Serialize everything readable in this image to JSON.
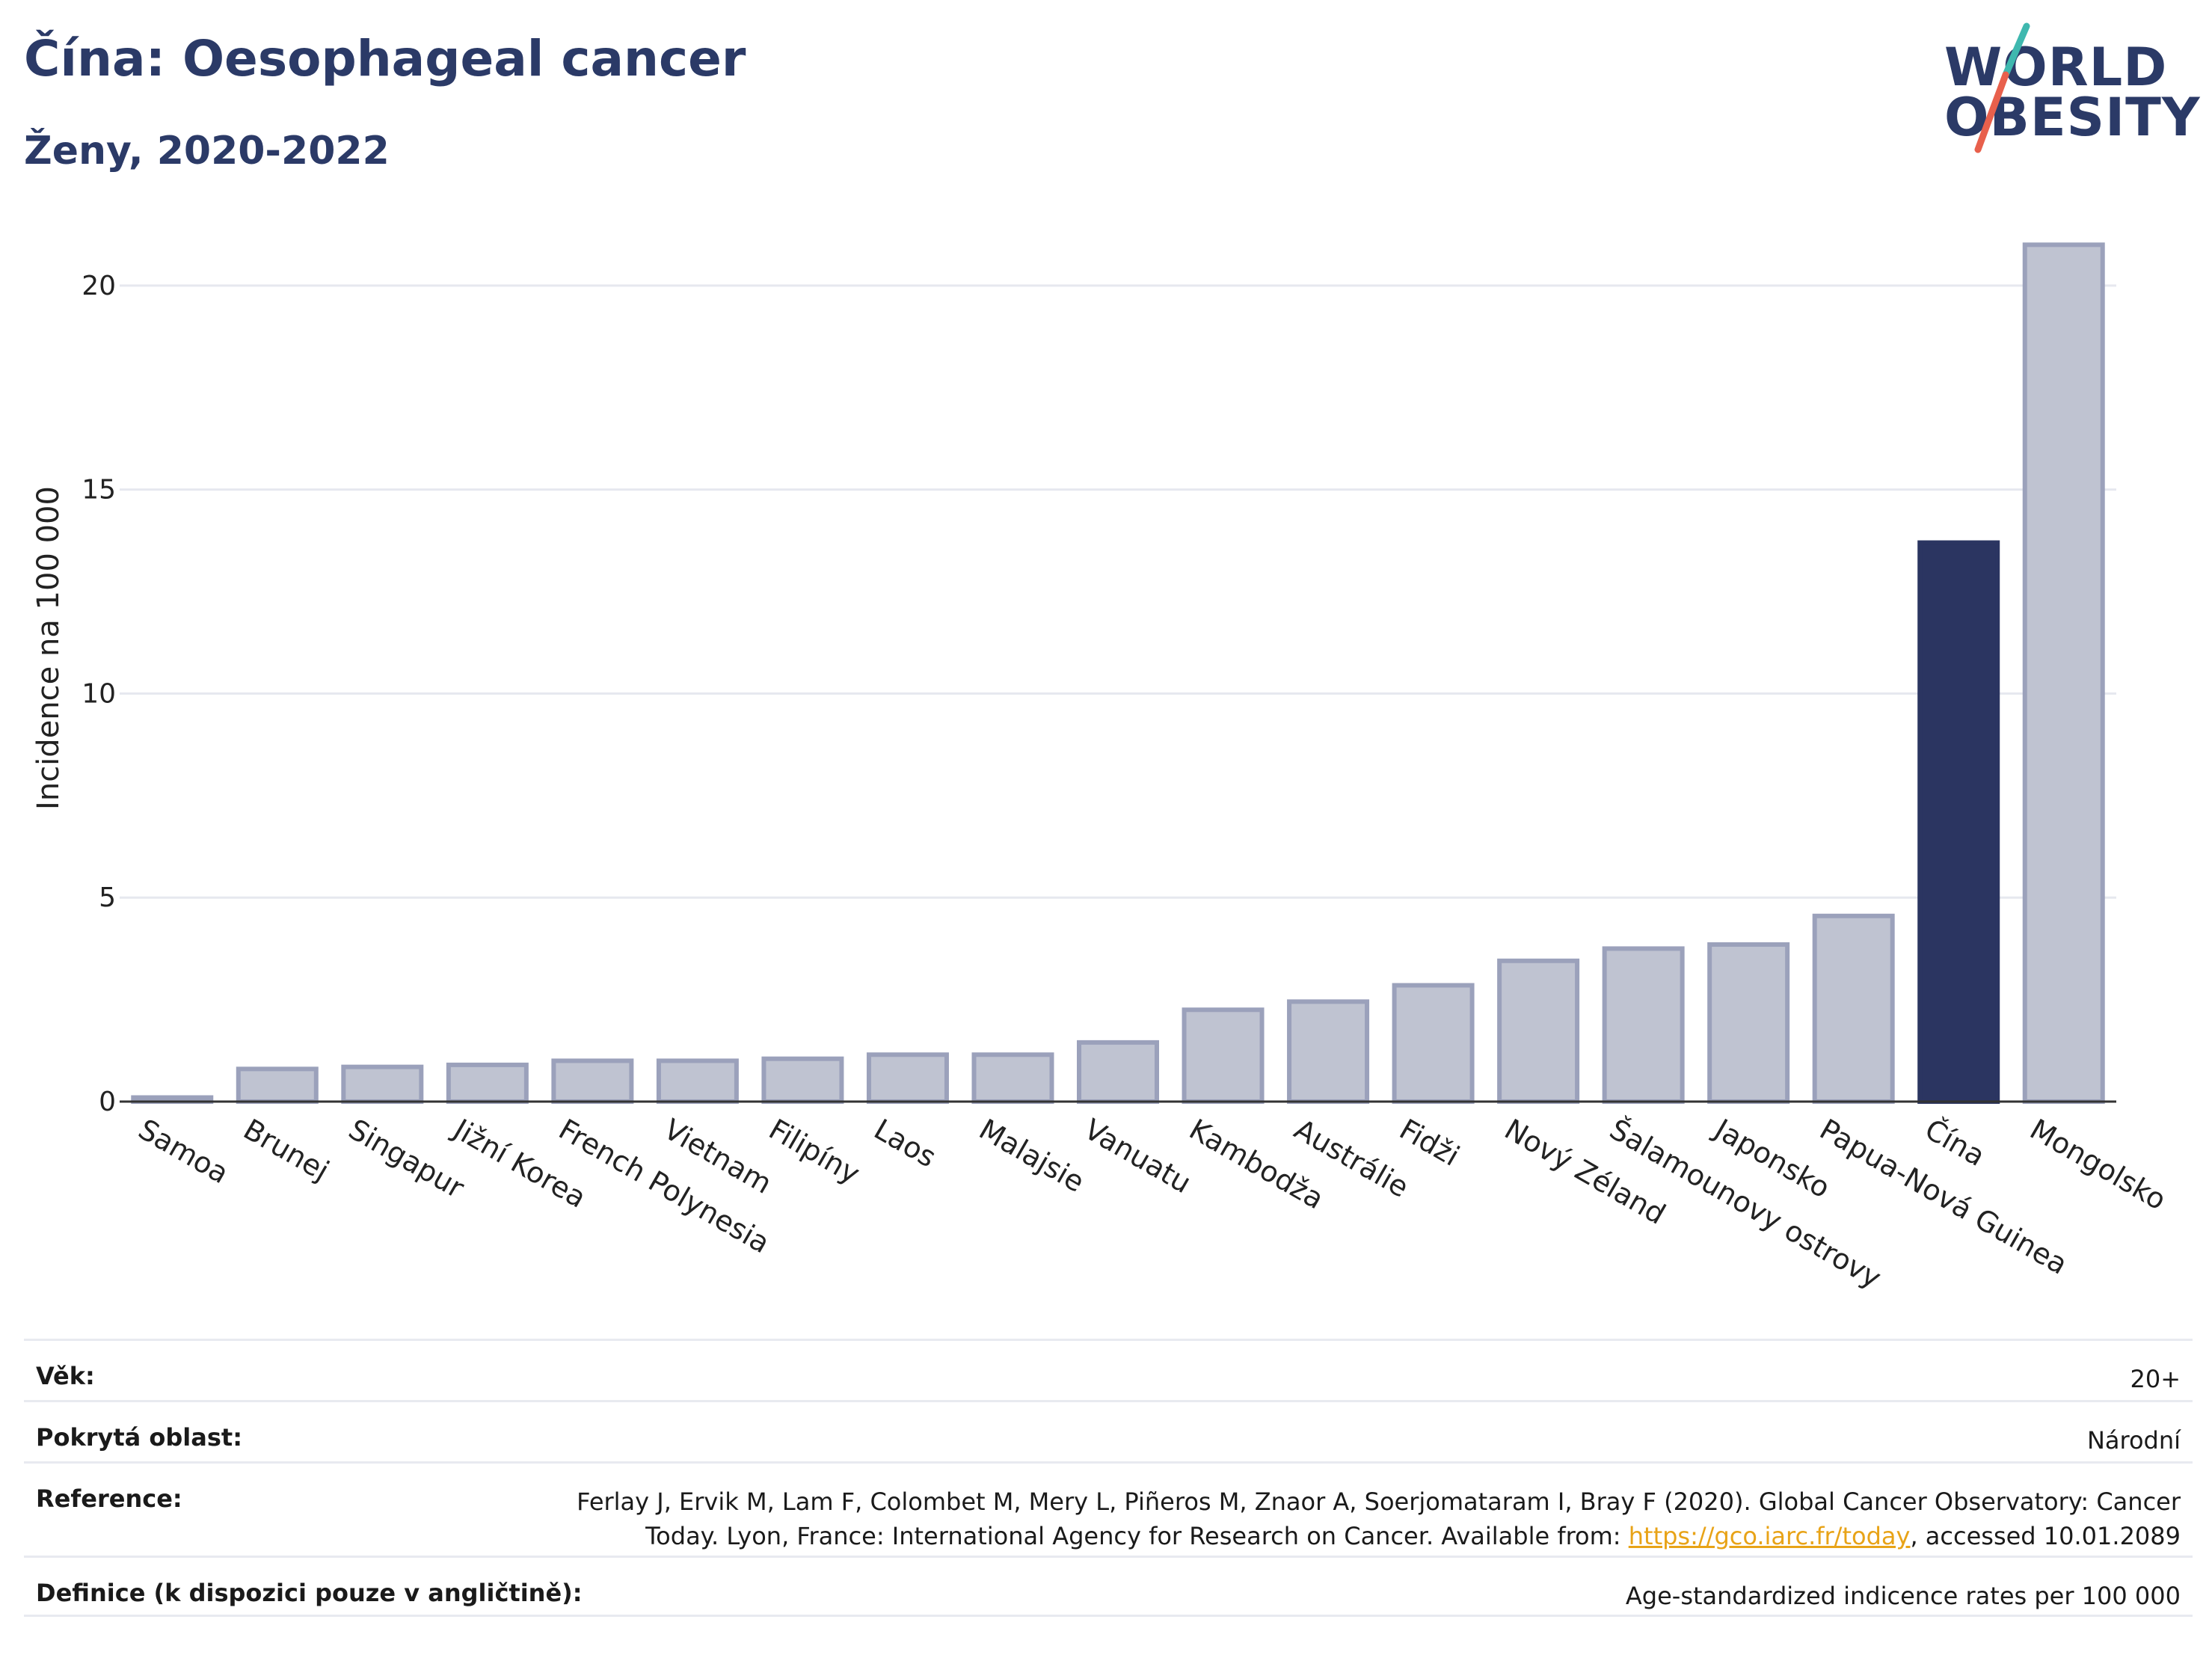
{
  "header": {
    "title": "Čína: Oesophageal cancer",
    "subtitle": "Ženy, 2020-2022"
  },
  "logo": {
    "line1": "WORLD",
    "line2": "OBESITY",
    "accent_teal": "#3fb8af",
    "accent_coral": "#e8604c"
  },
  "chart_data": {
    "type": "bar",
    "title": "",
    "xlabel": "",
    "ylabel": "Incidence na 100 000",
    "ylim": [
      0,
      21.5
    ],
    "yticks": [
      0,
      5,
      10,
      15,
      20
    ],
    "grid": true,
    "categories": [
      "Samoa",
      "Brunej",
      "Singapur",
      "Jižní Korea",
      "French Polynesia",
      "Vietnam",
      "Filipíny",
      "Laos",
      "Malajsie",
      "Vanuatu",
      "Kambodža",
      "Austrálie",
      "Fidži",
      "Nový Zéland",
      "Šalamounovy ostrovy",
      "Japonsko",
      "Papua-Nová Guinea",
      "Čína",
      "Mongolsko"
    ],
    "values": [
      0.1,
      0.8,
      0.85,
      0.9,
      1.0,
      1.0,
      1.05,
      1.15,
      1.15,
      1.45,
      2.25,
      2.45,
      2.85,
      3.45,
      3.75,
      3.85,
      4.55,
      13.7,
      21.0
    ],
    "highlight": "Čína",
    "colors": {
      "bar": "#bfc3d1",
      "bar_edge": "#9ba1bb",
      "highlight": "#2b3561",
      "grid": "#e6e8ef",
      "axis": "#333333"
    }
  },
  "meta": {
    "rows": [
      {
        "label": "Věk:",
        "value": "20+"
      },
      {
        "label": "Pokrytá oblast:",
        "value": "Národní"
      },
      {
        "label": "Reference:",
        "value": "Ferlay J, Ervik M, Lam F, Colombet M, Mery L, Piñeros M, Znaor A, Soerjomataram I, Bray F (2020). Global Cancer Observatory: Cancer Today. Lyon, France: International Agency for Research on Cancer. Available from: ",
        "link": "https://gco.iarc.fr/today",
        "suffix": ", accessed 10.01.2089"
      },
      {
        "label": "Definice (k dispozici pouze v angličtině):",
        "value": "Age-standardized indicence rates per 100 000"
      }
    ]
  }
}
